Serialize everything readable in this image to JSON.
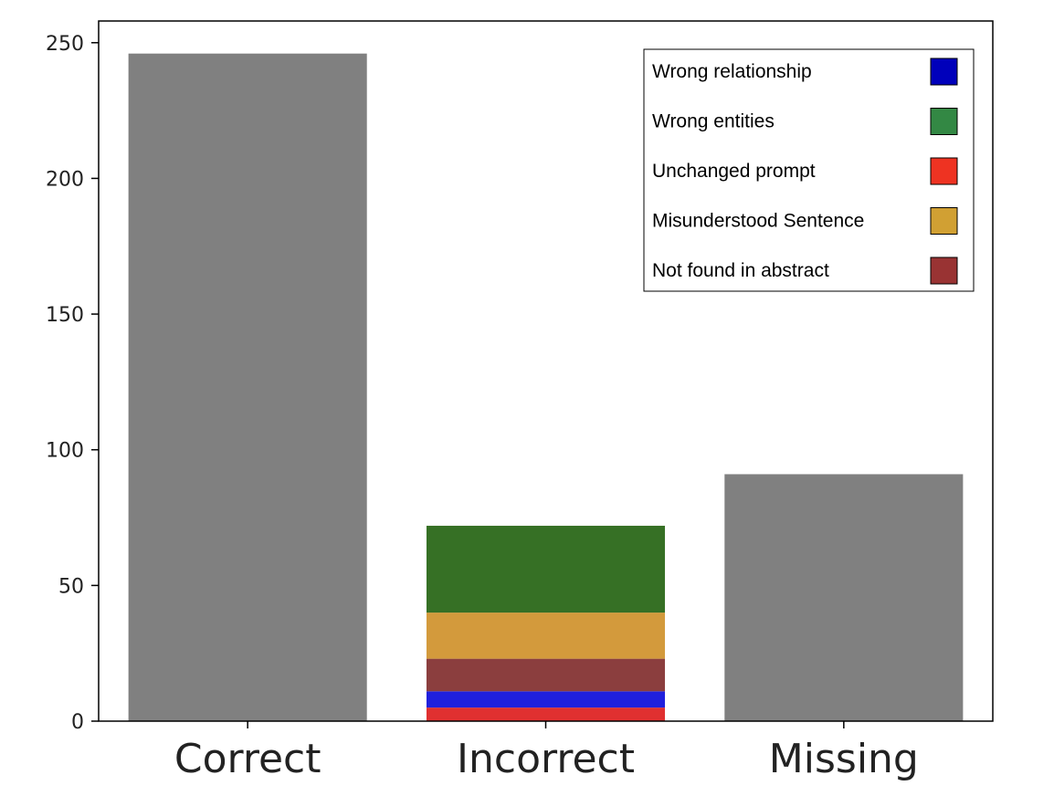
{
  "chart_data": {
    "type": "bar",
    "stacked": true,
    "categories": [
      "Correct",
      "Incorrect",
      "Missing"
    ],
    "ylim": [
      0,
      258
    ],
    "yticks": [
      0,
      50,
      100,
      150,
      200,
      250
    ],
    "grid": false,
    "legend_position": "top-right",
    "totals_color": "#808080",
    "totals": [
      246,
      null,
      91
    ],
    "stack_category": "Incorrect",
    "stack_segments": [
      {
        "name": "Unchanged prompt",
        "value": 5,
        "bar_color": "#e03030",
        "legend_color": "#ee3322"
      },
      {
        "name": "Wrong relationship",
        "value": 6,
        "bar_color": "#2020dd",
        "legend_color": "#0000bb"
      },
      {
        "name": "Not found in abstract",
        "value": 12,
        "bar_color": "#8b3e3e",
        "legend_color": "#993333"
      },
      {
        "name": "Misunderstood Sentence",
        "value": 17,
        "bar_color": "#d39a3c",
        "legend_color": "#d1a033"
      },
      {
        "name": "Wrong entities",
        "value": 32,
        "bar_color": "#367025",
        "legend_color": "#338844"
      }
    ],
    "legend_order": [
      "Wrong relationship",
      "Wrong entities",
      "Unchanged prompt",
      "Misunderstood Sentence",
      "Not found in abstract"
    ]
  }
}
